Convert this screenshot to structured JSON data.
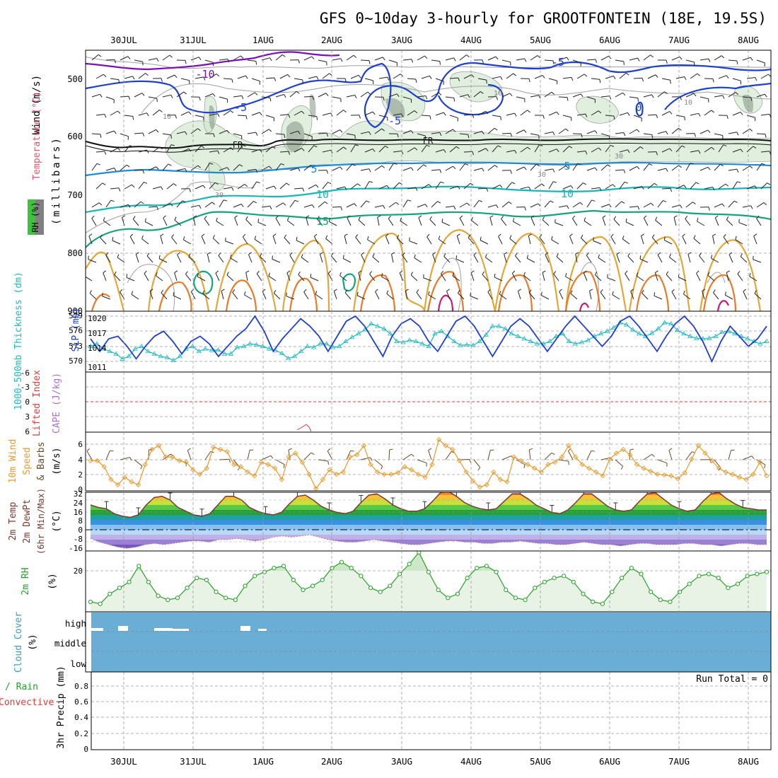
{
  "title": "GFS 0~10day 3-hourly for GROOTFONTEIN (18E, 19.5S)",
  "date_labels": [
    "30JUL",
    "31JUL",
    "1AUG",
    "2AUG",
    "3AUG",
    "4AUG",
    "5AUG",
    "6AUG",
    "7AUG",
    "8AUG"
  ],
  "colors": {
    "frame": "#000000",
    "grid": "#9a9a9a",
    "slp": "#1f3fd0",
    "thickness": "#1fb8c0",
    "li": "#e03a3a",
    "cape": "#b070d0",
    "wind10": "#e89a2a",
    "barb": "#6b4a2a",
    "temp_line": "#7a3a30",
    "dew_line": "#c08080",
    "rh_fill": "#e8f3e6",
    "rh_line": "#2aa02a",
    "cloud": "#6aaed6",
    "rh_shade": "#d5ecd0"
  },
  "panels": {
    "upper": {
      "labels": {
        "wind": "Wind (m/s)",
        "temp": "Temperature (°C)",
        "mb": "(millibars)",
        "rh": "RH (%)"
      },
      "y_ticks": [
        "500",
        "600",
        "700",
        "800",
        "900"
      ],
      "contour_labels": {
        "m10": "-10",
        "m5a": "-5",
        "m5b": "-5",
        "m5c": "-5",
        "fr1": "FR",
        "fr2": "FR",
        "p5a": "5",
        "p5b": "5",
        "p10a": "10",
        "p10b": "10",
        "p15": "15",
        "rh10a": "10",
        "rh10b": "10",
        "rh10c": "10",
        "rh30a": "30",
        "rh30b": "30",
        "rh30c": "30",
        "zero": "0"
      }
    },
    "slp": {
      "label_thk": "1000-500mb Thickness (dm)",
      "label_slp": "SLP (mb)",
      "left_ticks": [
        "579",
        "576",
        "573",
        "570"
      ],
      "right_ticks": [
        "1020",
        "1017",
        "1014",
        "1011"
      ]
    },
    "li": {
      "label_li": "Lifted Index",
      "label_cape": "CAPE (J/kg)",
      "y_ticks": [
        "-6",
        "-3",
        "0",
        "3",
        "6"
      ]
    },
    "wind10": {
      "label_a": "10m Wind",
      "label_b": "Speed",
      "label_c": "& Barbs",
      "unit": "(m/s)",
      "y_ticks": [
        "6",
        "4",
        "2",
        "0"
      ]
    },
    "temp": {
      "label_a": "2m Temp",
      "label_b": "2m DewPt",
      "label_c": "(6hr Min/Max)",
      "unit": "(°C)",
      "y_ticks": [
        "32",
        "24",
        "16",
        "8",
        "0",
        "-8",
        "-16"
      ]
    },
    "rh": {
      "label": "2m RH",
      "unit": "(%)",
      "y_ticks": [
        "20"
      ]
    },
    "cloud": {
      "label": "Cloud Cover",
      "unit": "(%)",
      "y_ticks": [
        "high",
        "middle",
        "low"
      ]
    },
    "precip": {
      "label_a": "Total / Rain",
      "label_b": "Convective",
      "label_c": "3hr Precip (mm)",
      "y_ticks": [
        "0.8",
        "0.6",
        "0.4",
        "0.2",
        "0"
      ],
      "run_total": "Run Total = 0"
    }
  },
  "chart_data": [
    {
      "type": "line",
      "name": "slp_thickness",
      "x": "3-hourly steps, 29 Jul 12Z to 8 Aug 06Z",
      "ylim_slp": [
        1010,
        1021
      ],
      "series": [
        {
          "name": "SLP (mb)",
          "values": [
            1015.5,
            1013,
            1015.5,
            1016,
            1014,
            1011.5,
            1014,
            1016,
            1017,
            1015,
            1012.5,
            1015,
            1016,
            1014.5,
            1012,
            1014,
            1016,
            1017.5,
            1020,
            1017,
            1013,
            1015.5,
            1017.5,
            1019.5,
            1018,
            1016,
            1013,
            1016,
            1019,
            1020,
            1018,
            1015,
            1012,
            1016,
            1018.5,
            1019.5,
            1018,
            1015,
            1013,
            1016,
            1019,
            1020,
            1018,
            1015,
            1012,
            1015,
            1018,
            1019.5,
            1018,
            1015.5,
            1013,
            1015.5,
            1018,
            1020,
            1018,
            1016,
            1014,
            1016,
            1019,
            1020,
            1018,
            1015.5,
            1013,
            1016,
            1018.5,
            1020,
            1018,
            1015,
            1011,
            1015,
            1018,
            1016,
            1014,
            1015.5,
            1018
          ]
        },
        {
          "name": "1000-500mb Thickness (dm)",
          "values": [
            573,
            573.5,
            572.5,
            572,
            571.5,
            570.5,
            571,
            572.5,
            573,
            572,
            571.5,
            571,
            570.8,
            570.2,
            571,
            572.5,
            573,
            572,
            572.5,
            572.2,
            572.3,
            571.5,
            571.5,
            572.8,
            573,
            573.5,
            573.3,
            573,
            572.5,
            572.2,
            571.6,
            570.6,
            571,
            572,
            573,
            572.8,
            573.5,
            573.5,
            572.8,
            573,
            574,
            574.8,
            575.5,
            576.3,
            577.5,
            577,
            576.5,
            575.5,
            574,
            573.8,
            574.2,
            574,
            573.5,
            573,
            575.5,
            576,
            575,
            574,
            573.2,
            573.3,
            573.2,
            574,
            575.3,
            577,
            577,
            576.5,
            575.5,
            575,
            574.5,
            574,
            573.5,
            573.5,
            574,
            575,
            575.5,
            574,
            573.5,
            573.8,
            574.2,
            575,
            575.5,
            576,
            576.7,
            577.7,
            577.3,
            576.3,
            575.5,
            575,
            575.6,
            576.5,
            577.7,
            577.5,
            576.2,
            575.5,
            575,
            574.6,
            574.5,
            574.6,
            575,
            575.8,
            576,
            575.5,
            575,
            574.5,
            574,
            573.5,
            574
          ]
        }
      ]
    },
    {
      "type": "line",
      "name": "wind10m",
      "ylabel": "(m/s)",
      "ylim": [
        0,
        7
      ],
      "values": [
        4,
        4,
        3.2,
        1.5,
        0.8,
        1.8,
        1.2,
        0.8,
        3.5,
        5.5,
        6,
        4.5,
        4.5,
        4,
        3.8,
        2.8,
        2.2,
        3,
        5.8,
        5.5,
        5.2,
        3.5,
        3.2,
        2.5,
        2,
        3.8,
        3.5,
        3,
        1.5,
        4.5,
        5,
        3.8,
        2.2,
        0.3,
        1.5,
        2.8,
        2.2,
        2.5,
        4.5,
        4.8,
        6,
        3.5,
        2.5,
        2.2,
        2.2,
        2.4,
        3.2,
        2.8,
        2.2,
        1.8,
        3.5,
        6.8,
        6,
        5.5,
        4,
        2.5,
        1.3,
        0.5,
        0.8,
        2.5,
        1.5,
        1.2,
        4.5,
        4,
        3.5,
        3,
        2.5,
        3.5,
        3.8,
        4.5,
        6,
        4.5,
        3.5,
        3,
        2.5,
        2,
        4.2,
        5,
        5.5,
        4.8,
        3.5,
        3,
        2.6,
        2.2,
        2.1,
        2,
        1.6,
        2.4,
        4.2,
        6,
        5,
        4,
        3,
        2.5,
        2.2,
        1.8,
        1.5,
        2.2,
        3.8,
        2
      ]
    },
    {
      "type": "area",
      "name": "2m_temperature",
      "ylabel": "(°C)",
      "ylim": [
        -20,
        34
      ],
      "series": [
        {
          "name": "2m Temp",
          "values": [
            20,
            18,
            17,
            13,
            11,
            10,
            12,
            20,
            26,
            27,
            24,
            18,
            15,
            12,
            11,
            13,
            20,
            27,
            27,
            24,
            18,
            15,
            13,
            12,
            14,
            21,
            27,
            28,
            24,
            19,
            16,
            14,
            13,
            15,
            22,
            28,
            29,
            25,
            20,
            17,
            15,
            15,
            17,
            23,
            30,
            31,
            27,
            22,
            19,
            17,
            16,
            17,
            23,
            29,
            29,
            25,
            20,
            17,
            14,
            13,
            16,
            22,
            29,
            29,
            24,
            19,
            16,
            15,
            16,
            23,
            29,
            30,
            25,
            20,
            17,
            15,
            16,
            23,
            29,
            30,
            25,
            21,
            18,
            17,
            16,
            16
          ]
        },
        {
          "name": "2m DewPt",
          "values": [
            -7,
            -10,
            -12,
            -14,
            -15,
            -14,
            -12,
            -11,
            -12,
            -11,
            -10,
            -9,
            -9,
            -10,
            -8,
            -8,
            -7,
            -8,
            -9,
            -8,
            -6,
            -5,
            -6,
            -5,
            -4,
            -6,
            -8,
            -9,
            -10,
            -10,
            -9,
            -8,
            -9,
            -10,
            -11,
            -12,
            -12,
            -11,
            -10,
            -9,
            -9,
            -10,
            -10,
            -11,
            -11,
            -10,
            -10,
            -9,
            -10,
            -11,
            -11,
            -12,
            -12,
            -11,
            -10,
            -11,
            -12,
            -12,
            -13,
            -12,
            -11,
            -11,
            -12,
            -12,
            -12,
            -11,
            -11,
            -12,
            -12,
            -13,
            -12,
            -11,
            -11,
            -12,
            -12
          ]
        }
      ]
    },
    {
      "type": "area",
      "name": "2m_rh",
      "ylabel": "(%)",
      "ylim": [
        0,
        32
      ],
      "values": [
        5,
        4,
        9,
        12,
        15,
        23,
        15,
        8,
        6,
        7,
        12,
        17,
        16,
        10,
        7,
        6,
        13,
        18,
        20,
        22,
        23,
        16,
        11,
        13,
        16,
        22,
        25,
        22,
        18,
        12,
        10,
        13,
        19,
        24,
        30,
        20,
        11,
        7,
        9,
        17,
        22,
        23,
        20,
        11,
        7,
        6,
        12,
        15,
        17,
        18,
        15,
        9,
        5,
        4,
        10,
        17,
        22,
        19,
        10,
        6,
        5,
        10,
        14,
        18,
        19,
        17,
        12,
        14,
        18,
        19,
        20
      ]
    },
    {
      "type": "heatmap",
      "name": "cloud_cover",
      "layers": [
        "high",
        "middle",
        "low"
      ],
      "note": "blue fill = cloud cover present through most of the period; small gaps at high level"
    },
    {
      "type": "bar",
      "name": "precip_3hr",
      "ylabel": "3hr Precip (mm)",
      "ylim": [
        0,
        1
      ],
      "values": []
    }
  ]
}
